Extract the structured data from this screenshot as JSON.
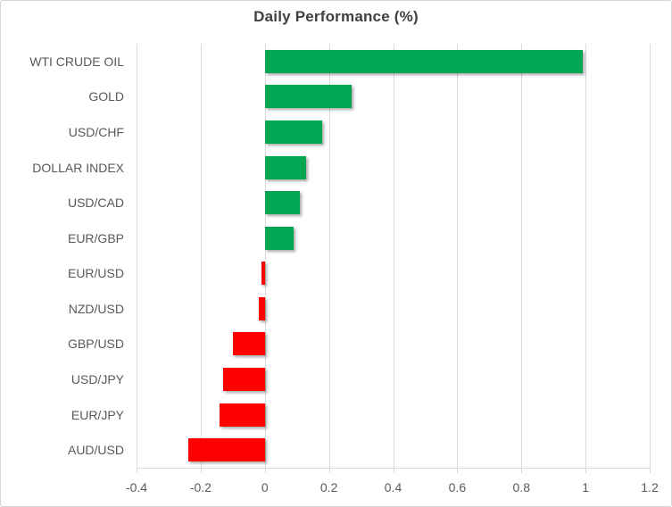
{
  "chart_data": {
    "type": "bar",
    "orientation": "horizontal",
    "title": "Daily Performance (%)",
    "categories": [
      "WTI CRUDE OIL",
      "GOLD",
      "USD/CHF",
      "DOLLAR INDEX",
      "USD/CAD",
      "EUR/GBP",
      "EUR/USD",
      "NZD/USD",
      "GBP/USD",
      "USD/JPY",
      "EUR/JPY",
      "AUD/USD"
    ],
    "values": [
      0.99,
      0.27,
      0.18,
      0.13,
      0.11,
      0.09,
      -0.01,
      -0.02,
      -0.1,
      -0.13,
      -0.14,
      -0.24
    ],
    "xlim": [
      -0.4,
      1.2
    ],
    "xticks": [
      -0.4,
      -0.2,
      0,
      0.2,
      0.4,
      0.6,
      0.8,
      1,
      1.2
    ],
    "xtick_labels": [
      "-0.4",
      "-0.2",
      "0",
      "0.2",
      "0.4",
      "0.6",
      "0.8",
      "1",
      "1.2"
    ],
    "grid": "vertical",
    "legend_position": "none",
    "positive_color": "#00A651",
    "negative_color": "#FF0000",
    "gridline_color": "#D9D9D9",
    "title_color": "#404040",
    "label_color": "#595959"
  }
}
